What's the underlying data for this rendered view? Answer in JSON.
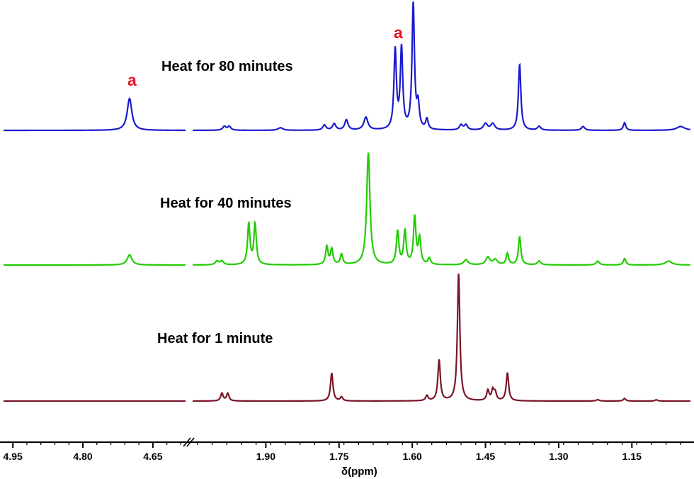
{
  "chart_data": {
    "type": "line",
    "xlabel": "δ(ppm)",
    "x_reversed": true,
    "axis_break": true,
    "segment_left": {
      "xlim": [
        4.97,
        4.58
      ],
      "ticks": [
        "4.95",
        "4.80",
        "4.65"
      ]
    },
    "segment_right": {
      "xlim": [
        2.05,
        1.03
      ],
      "ticks": [
        "1.90",
        "1.75",
        "1.60",
        "1.45",
        "1.30",
        "1.15"
      ]
    },
    "peak_marker": "a",
    "series": [
      {
        "name": "Heat for 80 minutes",
        "color": "#1a1acc",
        "peaks": [
          {
            "x": 4.7,
            "h": 0.25,
            "w": 0.006
          },
          {
            "x": 1.985,
            "h": 0.03,
            "w": 0.004
          },
          {
            "x": 1.975,
            "h": 0.03,
            "w": 0.004
          },
          {
            "x": 1.87,
            "h": 0.02,
            "w": 0.006
          },
          {
            "x": 1.78,
            "h": 0.04,
            "w": 0.004
          },
          {
            "x": 1.76,
            "h": 0.05,
            "w": 0.004
          },
          {
            "x": 1.735,
            "h": 0.08,
            "w": 0.004
          },
          {
            "x": 1.695,
            "h": 0.1,
            "w": 0.005
          },
          {
            "x": 1.635,
            "h": 0.62,
            "w": 0.003
          },
          {
            "x": 1.622,
            "h": 0.63,
            "w": 0.003
          },
          {
            "x": 1.598,
            "h": 0.98,
            "w": 0.003
          },
          {
            "x": 1.588,
            "h": 0.18,
            "w": 0.003
          },
          {
            "x": 1.57,
            "h": 0.08,
            "w": 0.003
          },
          {
            "x": 1.5,
            "h": 0.04,
            "w": 0.004
          },
          {
            "x": 1.49,
            "h": 0.04,
            "w": 0.004
          },
          {
            "x": 1.45,
            "h": 0.05,
            "w": 0.005
          },
          {
            "x": 1.435,
            "h": 0.05,
            "w": 0.005
          },
          {
            "x": 1.38,
            "h": 0.52,
            "w": 0.003
          },
          {
            "x": 1.34,
            "h": 0.03,
            "w": 0.004
          },
          {
            "x": 1.25,
            "h": 0.03,
            "w": 0.004
          },
          {
            "x": 1.165,
            "h": 0.06,
            "w": 0.003
          },
          {
            "x": 1.05,
            "h": 0.03,
            "w": 0.01
          }
        ]
      },
      {
        "name": "Heat for 40 minutes",
        "color": "#22cc00",
        "peaks": [
          {
            "x": 4.7,
            "h": 0.08,
            "w": 0.006
          },
          {
            "x": 2.0,
            "h": 0.03,
            "w": 0.004
          },
          {
            "x": 1.99,
            "h": 0.03,
            "w": 0.004
          },
          {
            "x": 1.935,
            "h": 0.32,
            "w": 0.003
          },
          {
            "x": 1.922,
            "h": 0.32,
            "w": 0.003
          },
          {
            "x": 1.775,
            "h": 0.14,
            "w": 0.003
          },
          {
            "x": 1.765,
            "h": 0.12,
            "w": 0.003
          },
          {
            "x": 1.745,
            "h": 0.08,
            "w": 0.003
          },
          {
            "x": 1.69,
            "h": 0.88,
            "w": 0.004
          },
          {
            "x": 1.63,
            "h": 0.26,
            "w": 0.003
          },
          {
            "x": 1.615,
            "h": 0.26,
            "w": 0.003
          },
          {
            "x": 1.595,
            "h": 0.37,
            "w": 0.003
          },
          {
            "x": 1.585,
            "h": 0.2,
            "w": 0.003
          },
          {
            "x": 1.565,
            "h": 0.05,
            "w": 0.003
          },
          {
            "x": 1.49,
            "h": 0.04,
            "w": 0.005
          },
          {
            "x": 1.445,
            "h": 0.06,
            "w": 0.005
          },
          {
            "x": 1.43,
            "h": 0.04,
            "w": 0.005
          },
          {
            "x": 1.405,
            "h": 0.09,
            "w": 0.003
          },
          {
            "x": 1.38,
            "h": 0.22,
            "w": 0.003
          },
          {
            "x": 1.34,
            "h": 0.03,
            "w": 0.004
          },
          {
            "x": 1.22,
            "h": 0.03,
            "w": 0.004
          },
          {
            "x": 1.165,
            "h": 0.05,
            "w": 0.003
          },
          {
            "x": 1.075,
            "h": 0.03,
            "w": 0.008
          }
        ]
      },
      {
        "name": "Heat for 1 minute",
        "color": "#7a1428",
        "peaks": [
          {
            "x": 1.99,
            "h": 0.06,
            "w": 0.003
          },
          {
            "x": 1.978,
            "h": 0.06,
            "w": 0.003
          },
          {
            "x": 1.765,
            "h": 0.22,
            "w": 0.003
          },
          {
            "x": 1.745,
            "h": 0.03,
            "w": 0.003
          },
          {
            "x": 1.57,
            "h": 0.04,
            "w": 0.003
          },
          {
            "x": 1.545,
            "h": 0.32,
            "w": 0.003
          },
          {
            "x": 1.505,
            "h": 1.0,
            "w": 0.003
          },
          {
            "x": 1.445,
            "h": 0.08,
            "w": 0.003
          },
          {
            "x": 1.435,
            "h": 0.08,
            "w": 0.003
          },
          {
            "x": 1.43,
            "h": 0.06,
            "w": 0.003
          },
          {
            "x": 1.405,
            "h": 0.22,
            "w": 0.003
          },
          {
            "x": 1.22,
            "h": 0.01,
            "w": 0.004
          },
          {
            "x": 1.165,
            "h": 0.02,
            "w": 0.003
          },
          {
            "x": 1.1,
            "h": 0.01,
            "w": 0.003
          }
        ]
      }
    ]
  }
}
